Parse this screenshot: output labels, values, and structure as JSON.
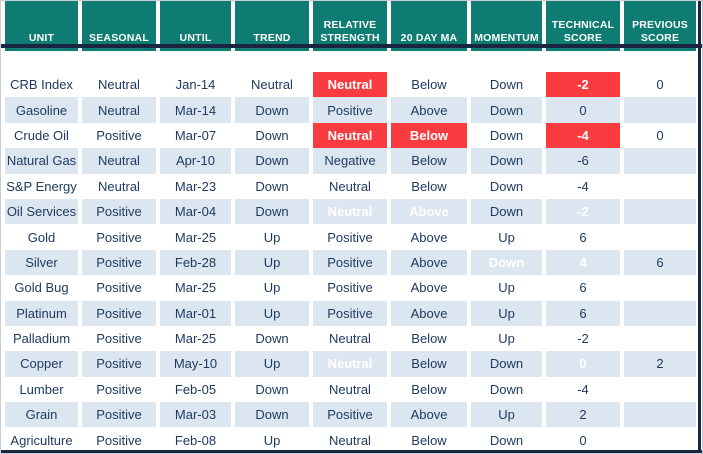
{
  "colors": {
    "teal": "#0e7c72",
    "rowalt": "#dce6f1",
    "red": "#fa3b40",
    "green": "#92d050",
    "navy": "#1a2541",
    "ink": "#1f3a60"
  },
  "chart_data": {
    "type": "table",
    "columns": [
      "UNIT",
      "SEASONAL",
      "UNTIL",
      "TREND",
      "RELATIVE STRENGTH",
      "20 DAY MA",
      "MOMENTUM",
      "TECHNICAL SCORE",
      "PREVIOUS SCORE"
    ],
    "rows": [
      {
        "cells": [
          {
            "text": "CRB Index"
          },
          {
            "text": "Neutral"
          },
          {
            "text": "Jan-14"
          },
          {
            "text": "Neutral"
          },
          {
            "text": "Neutral",
            "hl": "red"
          },
          {
            "text": "Below"
          },
          {
            "text": "Down"
          },
          {
            "text": "-2",
            "hl": "red"
          },
          {
            "text": "0"
          }
        ]
      },
      {
        "cells": [
          {
            "text": "Gasoline"
          },
          {
            "text": "Neutral"
          },
          {
            "text": "Mar-14"
          },
          {
            "text": "Down"
          },
          {
            "text": "Positive"
          },
          {
            "text": "Above"
          },
          {
            "text": "Down"
          },
          {
            "text": "0"
          },
          {
            "text": ""
          }
        ]
      },
      {
        "cells": [
          {
            "text": "Crude Oil"
          },
          {
            "text": "Positive"
          },
          {
            "text": "Mar-07"
          },
          {
            "text": "Down"
          },
          {
            "text": "Neutral",
            "hl": "red"
          },
          {
            "text": "Below",
            "hl": "red"
          },
          {
            "text": "Down"
          },
          {
            "text": "-4",
            "hl": "red"
          },
          {
            "text": "0"
          }
        ]
      },
      {
        "cells": [
          {
            "text": "Natural Gas"
          },
          {
            "text": "Neutral"
          },
          {
            "text": "Apr-10"
          },
          {
            "text": "Down"
          },
          {
            "text": "Negative"
          },
          {
            "text": "Below"
          },
          {
            "text": "Down"
          },
          {
            "text": "-6"
          },
          {
            "text": ""
          }
        ]
      },
      {
        "cells": [
          {
            "text": "S&P Energy"
          },
          {
            "text": "Neutral"
          },
          {
            "text": "Mar-23"
          },
          {
            "text": "Down"
          },
          {
            "text": "Neutral"
          },
          {
            "text": "Below"
          },
          {
            "text": "Down"
          },
          {
            "text": "-4"
          },
          {
            "text": ""
          }
        ]
      },
      {
        "cells": [
          {
            "text": "Oil Services"
          },
          {
            "text": "Positive"
          },
          {
            "text": "Mar-04"
          },
          {
            "text": "Down"
          },
          {
            "text": "Neutral",
            "hl": "red"
          },
          {
            "text": "Above",
            "hl": "green"
          },
          {
            "text": "Down"
          },
          {
            "text": "-2",
            "hl": "red"
          },
          {
            "text": ""
          }
        ]
      },
      {
        "cells": [
          {
            "text": "Gold"
          },
          {
            "text": "Positive"
          },
          {
            "text": "Mar-25"
          },
          {
            "text": "Up"
          },
          {
            "text": "Positive"
          },
          {
            "text": "Above"
          },
          {
            "text": "Up"
          },
          {
            "text": "6"
          },
          {
            "text": ""
          }
        ]
      },
      {
        "cells": [
          {
            "text": "Silver"
          },
          {
            "text": "Positive"
          },
          {
            "text": "Feb-28"
          },
          {
            "text": "Up"
          },
          {
            "text": "Positive"
          },
          {
            "text": "Above"
          },
          {
            "text": "Down",
            "hl": "red"
          },
          {
            "text": "4",
            "hl": "red"
          },
          {
            "text": "6"
          }
        ]
      },
      {
        "cells": [
          {
            "text": "Gold Bug"
          },
          {
            "text": "Positive"
          },
          {
            "text": "Mar-25"
          },
          {
            "text": "Up"
          },
          {
            "text": "Positive"
          },
          {
            "text": "Above"
          },
          {
            "text": "Up"
          },
          {
            "text": "6"
          },
          {
            "text": ""
          }
        ]
      },
      {
        "cells": [
          {
            "text": "Platinum"
          },
          {
            "text": "Positive"
          },
          {
            "text": "Mar-01"
          },
          {
            "text": "Up"
          },
          {
            "text": "Positive"
          },
          {
            "text": "Above"
          },
          {
            "text": "Up"
          },
          {
            "text": "6"
          },
          {
            "text": ""
          }
        ]
      },
      {
        "cells": [
          {
            "text": "Palladium"
          },
          {
            "text": "Positive"
          },
          {
            "text": "Mar-25"
          },
          {
            "text": "Down"
          },
          {
            "text": "Neutral"
          },
          {
            "text": "Below"
          },
          {
            "text": "Up"
          },
          {
            "text": "-2"
          },
          {
            "text": ""
          }
        ]
      },
      {
        "cells": [
          {
            "text": "Copper"
          },
          {
            "text": "Positive"
          },
          {
            "text": "May-10"
          },
          {
            "text": "Up"
          },
          {
            "text": "Neutral",
            "hl": "red"
          },
          {
            "text": "Below"
          },
          {
            "text": "Down"
          },
          {
            "text": "0",
            "hl": "red"
          },
          {
            "text": "2"
          }
        ]
      },
      {
        "cells": [
          {
            "text": "Lumber"
          },
          {
            "text": "Positive"
          },
          {
            "text": "Feb-05"
          },
          {
            "text": "Down"
          },
          {
            "text": "Neutral"
          },
          {
            "text": "Below"
          },
          {
            "text": "Down"
          },
          {
            "text": "-4"
          },
          {
            "text": ""
          }
        ]
      },
      {
        "cells": [
          {
            "text": "Grain"
          },
          {
            "text": "Positive"
          },
          {
            "text": "Mar-03"
          },
          {
            "text": "Down"
          },
          {
            "text": "Positive"
          },
          {
            "text": "Above"
          },
          {
            "text": "Up"
          },
          {
            "text": "2"
          },
          {
            "text": ""
          }
        ]
      },
      {
        "cells": [
          {
            "text": "Agriculture"
          },
          {
            "text": "Positive"
          },
          {
            "text": "Feb-08"
          },
          {
            "text": "Up"
          },
          {
            "text": "Neutral"
          },
          {
            "text": "Below"
          },
          {
            "text": "Down"
          },
          {
            "text": "0"
          },
          {
            "text": ""
          }
        ]
      }
    ]
  }
}
